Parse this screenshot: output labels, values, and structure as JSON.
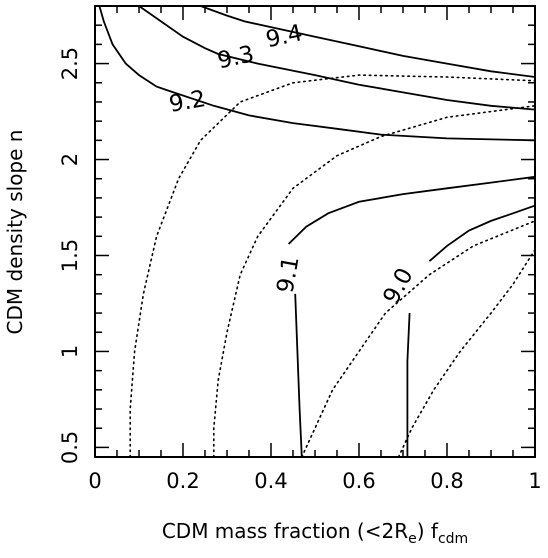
{
  "chart_data": {
    "type": "line",
    "xlabel": "CDM mass fraction (<2R",
    "xlabel_sub1": "e",
    "xlabel_mid": ") f",
    "xlabel_sub2": "cdm",
    "ylabel": "CDM density slope n",
    "xlim": [
      0,
      1
    ],
    "ylim": [
      0.45,
      2.8
    ],
    "x_ticks": [
      "0",
      "0.2",
      "0.4",
      "0.6",
      "0.8",
      "1"
    ],
    "y_ticks": [
      "0.5",
      "1",
      "1.5",
      "2",
      "2.5"
    ],
    "grid": false,
    "solid_contours": [
      {
        "label": "9.4",
        "label_pos": [
          0.43,
          2.64
        ],
        "label_angle": -12,
        "points": [
          [
            0.24,
            2.8
          ],
          [
            0.3,
            2.75
          ],
          [
            0.34,
            2.72
          ],
          [
            0.5,
            2.64
          ],
          [
            0.6,
            2.59
          ],
          [
            0.7,
            2.54
          ],
          [
            0.8,
            2.5
          ],
          [
            0.9,
            2.46
          ],
          [
            1.0,
            2.43
          ]
        ]
      },
      {
        "label": "9.3",
        "label_pos": [
          0.32,
          2.53
        ],
        "label_angle": -12,
        "points": [
          [
            0.1,
            2.8
          ],
          [
            0.15,
            2.72
          ],
          [
            0.2,
            2.64
          ],
          [
            0.25,
            2.58
          ],
          [
            0.28,
            2.55
          ],
          [
            0.37,
            2.5
          ],
          [
            0.5,
            2.44
          ],
          [
            0.6,
            2.39
          ],
          [
            0.7,
            2.35
          ],
          [
            0.8,
            2.31
          ],
          [
            0.9,
            2.28
          ],
          [
            1.0,
            2.26
          ]
        ]
      },
      {
        "label": "9.2",
        "label_pos": [
          0.21,
          2.3
        ],
        "label_angle": -10,
        "points": [
          [
            0.01,
            2.8
          ],
          [
            0.02,
            2.72
          ],
          [
            0.04,
            2.6
          ],
          [
            0.07,
            2.5
          ],
          [
            0.1,
            2.44
          ],
          [
            0.14,
            2.38
          ],
          [
            0.165,
            2.36
          ],
          [
            0.27,
            2.28
          ],
          [
            0.35,
            2.23
          ],
          [
            0.45,
            2.19
          ],
          [
            0.55,
            2.16
          ],
          [
            0.65,
            2.13
          ],
          [
            0.8,
            2.11
          ],
          [
            1.0,
            2.1
          ]
        ]
      },
      {
        "label": "9.1",
        "label_pos": [
          0.44,
          1.4
        ],
        "label_angle": -80,
        "points": [
          [
            0.47,
            0.45
          ],
          [
            0.465,
            0.7
          ],
          [
            0.46,
            1.0
          ],
          [
            0.455,
            1.3
          ],
          [
            null,
            null
          ],
          [
            0.44,
            1.56
          ],
          [
            0.48,
            1.65
          ],
          [
            0.53,
            1.72
          ],
          [
            0.6,
            1.78
          ],
          [
            0.7,
            1.82
          ],
          [
            0.8,
            1.85
          ],
          [
            0.9,
            1.88
          ],
          [
            1.0,
            1.91
          ]
        ]
      },
      {
        "label": "9.0",
        "label_pos": [
          0.69,
          1.34
        ],
        "label_angle": -62,
        "points": [
          [
            0.71,
            0.45
          ],
          [
            0.71,
            0.7
          ],
          [
            0.71,
            0.95
          ],
          [
            0.715,
            1.2
          ],
          [
            null,
            null
          ],
          [
            0.76,
            1.47
          ],
          [
            0.8,
            1.55
          ],
          [
            0.85,
            1.63
          ],
          [
            0.9,
            1.68
          ],
          [
            0.95,
            1.72
          ],
          [
            1.0,
            1.76
          ]
        ]
      }
    ],
    "dotted_contours": [
      {
        "points": [
          [
            0.08,
            0.45
          ],
          [
            0.08,
            0.7
          ],
          [
            0.09,
            1.0
          ],
          [
            0.11,
            1.3
          ],
          [
            0.14,
            1.6
          ],
          [
            0.19,
            1.9
          ],
          [
            0.24,
            2.1
          ],
          [
            0.33,
            2.3
          ],
          [
            0.45,
            2.4
          ],
          [
            0.6,
            2.44
          ],
          [
            0.8,
            2.43
          ],
          [
            1.0,
            2.41
          ]
        ]
      },
      {
        "points": [
          [
            0.27,
            0.45
          ],
          [
            0.27,
            0.6
          ],
          [
            0.28,
            0.85
          ],
          [
            0.3,
            1.1
          ],
          [
            0.33,
            1.4
          ],
          [
            0.37,
            1.6
          ],
          [
            0.45,
            1.85
          ],
          [
            0.55,
            2.02
          ],
          [
            0.65,
            2.12
          ],
          [
            0.8,
            2.22
          ],
          [
            1.0,
            2.28
          ]
        ]
      },
      {
        "points": [
          [
            0.47,
            0.45
          ],
          [
            0.5,
            0.6
          ],
          [
            0.54,
            0.8
          ],
          [
            0.6,
            1.0
          ],
          [
            0.66,
            1.2
          ],
          [
            0.76,
            1.4
          ],
          [
            0.86,
            1.55
          ],
          [
            1.0,
            1.68
          ]
        ]
      },
      {
        "points": [
          [
            0.69,
            0.45
          ],
          [
            0.72,
            0.6
          ],
          [
            0.77,
            0.8
          ],
          [
            0.83,
            1.0
          ],
          [
            0.9,
            1.2
          ],
          [
            0.95,
            1.35
          ],
          [
            1.0,
            1.53
          ]
        ]
      }
    ]
  }
}
